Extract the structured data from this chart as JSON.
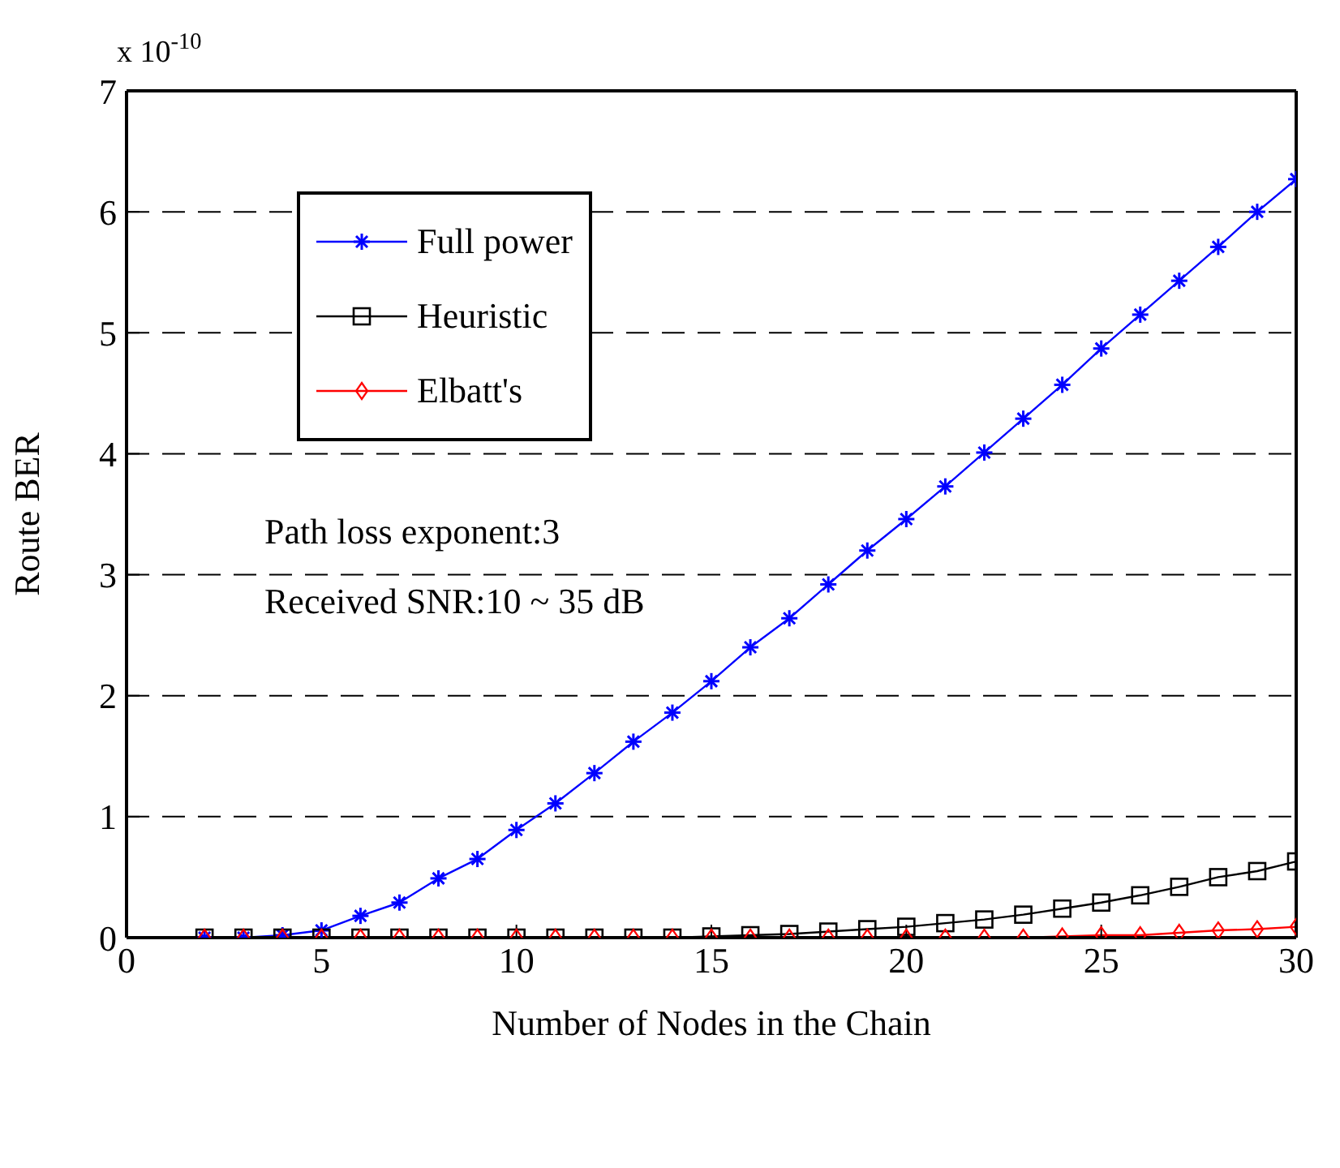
{
  "chart_data": {
    "type": "line",
    "xlabel": "Number of Nodes in the Chain",
    "ylabel": "Route BER",
    "x": [
      2,
      3,
      4,
      5,
      6,
      7,
      8,
      9,
      10,
      11,
      12,
      13,
      14,
      15,
      16,
      17,
      18,
      19,
      20,
      21,
      22,
      23,
      24,
      25,
      26,
      27,
      28,
      29,
      30
    ],
    "series": [
      {
        "name": "Full power",
        "color": "#0000ff",
        "marker": "cross",
        "values": [
          0,
          0,
          0.02,
          0.06,
          0.18,
          0.29,
          0.49,
          0.65,
          0.89,
          1.11,
          1.36,
          1.62,
          1.86,
          2.12,
          2.4,
          2.64,
          2.92,
          3.2,
          3.46,
          3.73,
          4.01,
          4.29,
          4.57,
          4.87,
          5.15,
          5.43,
          5.71,
          6.0,
          6.27
        ]
      },
      {
        "name": "Heuristic",
        "color": "#000000",
        "marker": "square",
        "values": [
          0,
          0,
          0,
          0,
          0,
          0,
          0,
          0,
          0,
          0,
          0,
          0,
          0,
          0.01,
          0.02,
          0.03,
          0.05,
          0.07,
          0.09,
          0.12,
          0.15,
          0.19,
          0.24,
          0.29,
          0.35,
          0.42,
          0.5,
          0.55,
          0.63
        ]
      },
      {
        "name": "Elbatt's",
        "color": "#ff0000",
        "marker": "diamond",
        "values": [
          0,
          0,
          0,
          0,
          0,
          0,
          0,
          0,
          0,
          0,
          0,
          0,
          0,
          0,
          0,
          0,
          0,
          0,
          0,
          0,
          0,
          0,
          0.01,
          0.02,
          0.02,
          0.04,
          0.06,
          0.07,
          0.09
        ]
      }
    ],
    "xlim": [
      0,
      30
    ],
    "xticks": [
      0,
      5,
      10,
      15,
      20,
      25,
      30
    ],
    "ylim": [
      0,
      7
    ],
    "yticks": [
      0,
      1,
      2,
      3,
      4,
      5,
      6,
      7
    ],
    "grid": "y",
    "legend": "top left",
    "line_style": "solid",
    "annotations": [
      "x 10$^{-10}$",
      "Path loss exponent:3",
      "Received SNR:10 ~ 35 dB"
    ]
  }
}
